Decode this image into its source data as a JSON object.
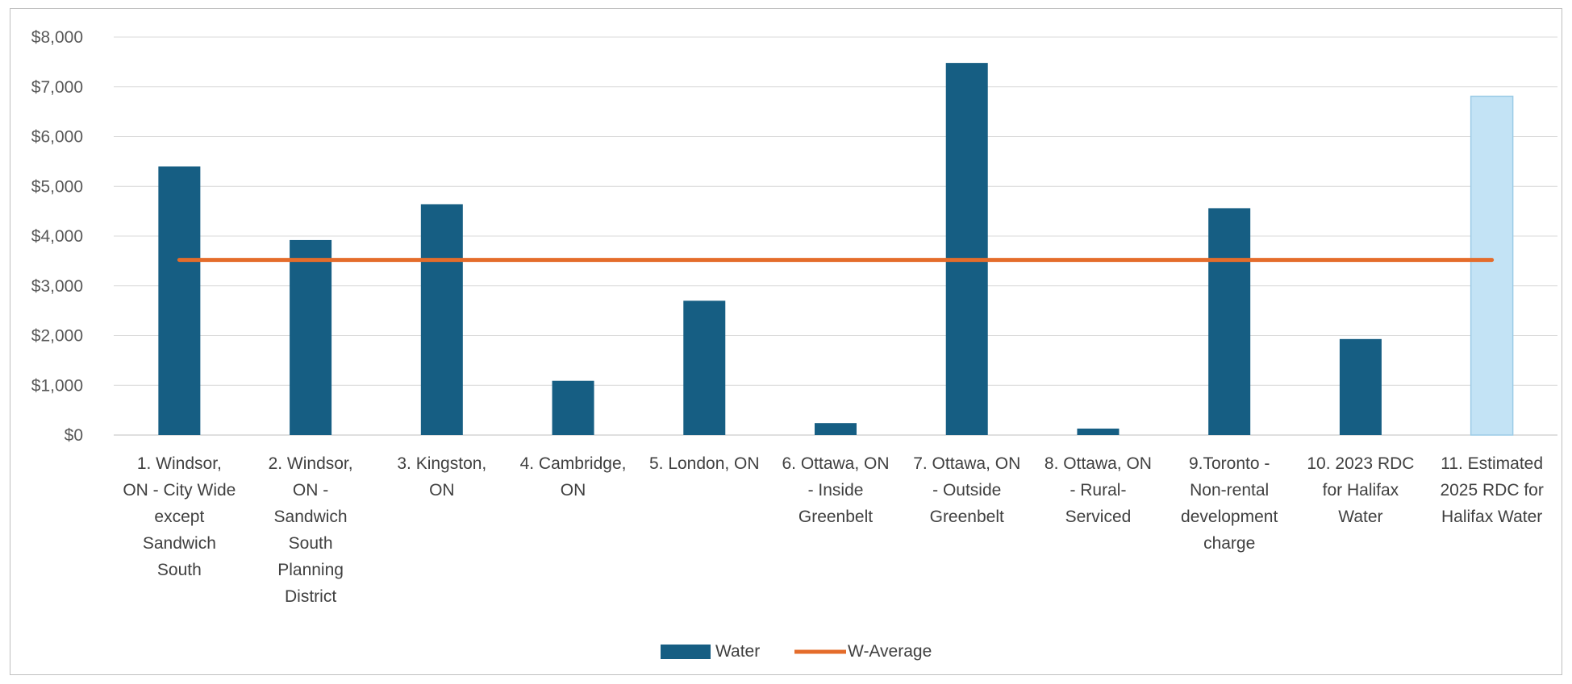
{
  "chart_data": {
    "type": "bar",
    "title": "",
    "xlabel": "",
    "ylabel": "",
    "ylim": [
      0,
      8000
    ],
    "yticks": [
      0,
      1000,
      2000,
      3000,
      4000,
      5000,
      6000,
      7000,
      8000
    ],
    "ytick_labels": [
      "$0",
      "$1,000",
      "$2,000",
      "$3,000",
      "$4,000",
      "$5,000",
      "$6,000",
      "$7,000",
      "$8,000"
    ],
    "grid": true,
    "legend_position": "bottom",
    "categories": [
      "1. Windsor, ON - City Wide except Sandwich South",
      "2. Windsor, ON - Sandwich South Planning District",
      "3. Kingston, ON",
      "4. Cambridge, ON",
      "5. London, ON",
      "6. Ottawa, ON - Inside Greenbelt",
      "7. Ottawa, ON - Outside Greenbelt",
      "8. Ottawa, ON - Rural-Serviced",
      "9.Toronto - Non-rental development charge",
      "10. 2023 RDC for Halifax Water",
      "11. Estimated 2025 RDC for Halifax Water"
    ],
    "category_label_lines": [
      [
        "1. Windsor,",
        "ON - City Wide",
        "except",
        "Sandwich",
        "South"
      ],
      [
        "2. Windsor,",
        "ON -",
        "Sandwich",
        "South",
        "Planning",
        "District"
      ],
      [
        "3. Kingston,",
        "ON"
      ],
      [
        "4. Cambridge,",
        "ON"
      ],
      [
        "5. London, ON"
      ],
      [
        "6. Ottawa, ON",
        "- Inside",
        "Greenbelt"
      ],
      [
        "7. Ottawa, ON",
        "- Outside",
        "Greenbelt"
      ],
      [
        "8. Ottawa, ON",
        "- Rural-",
        "Serviced"
      ],
      [
        "9.Toronto -",
        "Non-rental",
        "development",
        "charge"
      ],
      [
        "10. 2023 RDC",
        "for Halifax",
        "Water"
      ],
      [
        "11. Estimated",
        "2025 RDC for",
        "Halifax Water"
      ]
    ],
    "series": [
      {
        "name": "Water",
        "kind": "bar",
        "color": "#165e83",
        "values": [
          5400,
          3920,
          4640,
          1090,
          2700,
          240,
          7480,
          130,
          4560,
          1930,
          6810
        ],
        "highlight_index": 10,
        "highlight_color": "#c3e3f5"
      },
      {
        "name": "W-Average",
        "kind": "line",
        "color": "#e46c2b",
        "values": [
          3520,
          3520,
          3520,
          3520,
          3520,
          3520,
          3520,
          3520,
          3520,
          3520,
          3520
        ]
      }
    ]
  }
}
